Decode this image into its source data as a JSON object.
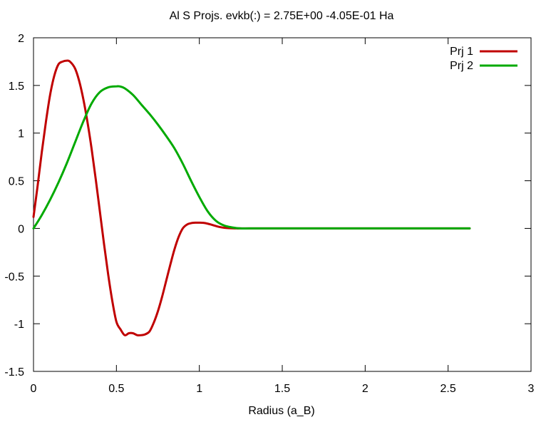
{
  "chart_data": {
    "type": "line",
    "title": "Al   S Projs. evkb(:) =   2.75E+00  -4.05E-01 Ha",
    "xlabel": "Radius (a_B)",
    "ylabel": "",
    "xlim": [
      0,
      3
    ],
    "ylim": [
      -1.5,
      2
    ],
    "xticks": [
      0,
      0.5,
      1,
      1.5,
      2,
      2.5,
      3
    ],
    "xtick_labels": [
      "0",
      "0.5",
      "1",
      "1.5",
      "2",
      "2.5",
      "3"
    ],
    "yticks": [
      -1.5,
      -1,
      -0.5,
      0,
      0.5,
      1,
      1.5,
      2
    ],
    "ytick_labels": [
      "-1.5",
      "-1",
      "-0.5",
      "0",
      "0.5",
      "1",
      "1.5",
      "2"
    ],
    "grid": false,
    "legend_position": "top-right",
    "series": [
      {
        "name": "Prj 1",
        "color": "#c00000",
        "x": [
          0,
          0.025,
          0.05,
          0.075,
          0.1,
          0.125,
          0.15,
          0.175,
          0.2,
          0.22,
          0.25,
          0.275,
          0.3,
          0.325,
          0.35,
          0.375,
          0.4,
          0.425,
          0.45,
          0.475,
          0.5,
          0.525,
          0.55,
          0.575,
          0.6,
          0.625,
          0.65,
          0.675,
          0.7,
          0.725,
          0.75,
          0.775,
          0.8,
          0.825,
          0.85,
          0.875,
          0.9,
          0.925,
          0.95,
          0.975,
          1.0,
          1.025,
          1.05,
          1.075,
          1.1,
          1.125,
          1.15,
          1.175,
          1.2,
          1.225,
          1.25,
          1.3,
          1.4,
          1.5,
          1.75,
          2.0,
          2.25,
          2.5,
          2.63
        ],
        "y": [
          0.12,
          0.45,
          0.8,
          1.12,
          1.4,
          1.6,
          1.72,
          1.75,
          1.76,
          1.75,
          1.68,
          1.55,
          1.36,
          1.12,
          0.84,
          0.52,
          0.18,
          -0.16,
          -0.48,
          -0.76,
          -0.98,
          -1.06,
          -1.12,
          -1.1,
          -1.1,
          -1.12,
          -1.12,
          -1.11,
          -1.08,
          -0.99,
          -0.87,
          -0.72,
          -0.55,
          -0.38,
          -0.22,
          -0.09,
          -0.0,
          0.04,
          0.055,
          0.06,
          0.06,
          0.058,
          0.05,
          0.038,
          0.025,
          0.014,
          0.007,
          0.003,
          0.001,
          0.0,
          0.0,
          0.0,
          0.0,
          0.0,
          0.0,
          0.0,
          0.0,
          0.0,
          0.0
        ]
      },
      {
        "name": "Prj 2",
        "color": "#00aa00",
        "x": [
          0,
          0.05,
          0.1,
          0.15,
          0.2,
          0.25,
          0.3,
          0.35,
          0.4,
          0.45,
          0.5,
          0.52,
          0.55,
          0.6,
          0.65,
          0.7,
          0.75,
          0.8,
          0.85,
          0.9,
          0.95,
          1.0,
          1.05,
          1.1,
          1.15,
          1.2,
          1.25,
          1.3,
          1.4,
          1.5,
          1.75,
          2.0,
          2.25,
          2.5,
          2.63
        ],
        "y": [
          0.0,
          0.14,
          0.3,
          0.48,
          0.68,
          0.9,
          1.12,
          1.31,
          1.43,
          1.48,
          1.49,
          1.49,
          1.47,
          1.4,
          1.3,
          1.2,
          1.09,
          0.97,
          0.84,
          0.68,
          0.5,
          0.33,
          0.18,
          0.08,
          0.03,
          0.01,
          0.0,
          0.0,
          0.0,
          0.0,
          0.0,
          0.0,
          0.0,
          0.0,
          0.0
        ]
      }
    ]
  }
}
